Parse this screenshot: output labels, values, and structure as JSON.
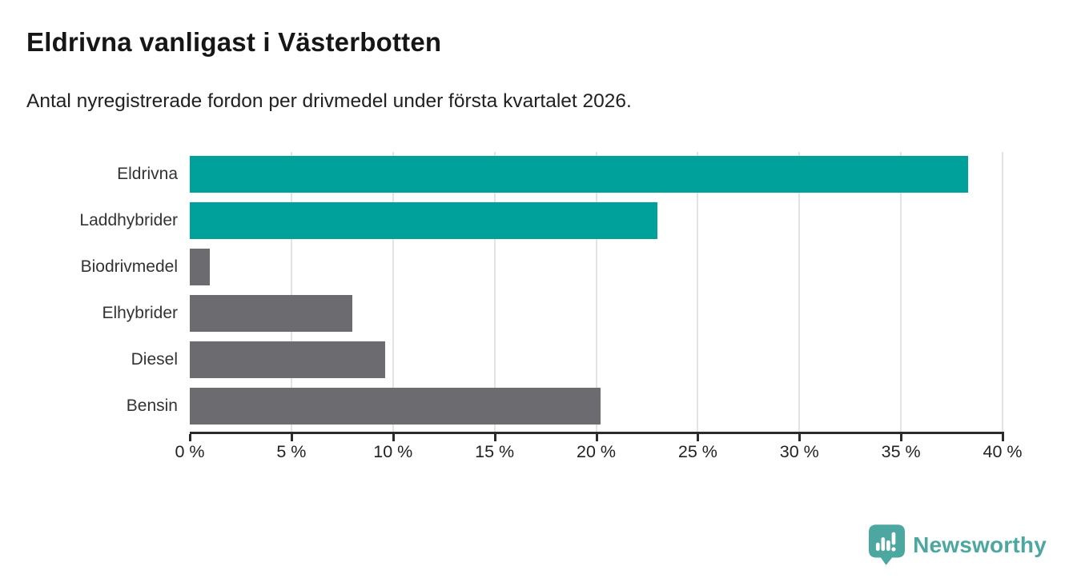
{
  "header": {
    "title": "Eldrivna vanligast i Västerbotten",
    "subtitle": "Antal nyregistrerade fordon per drivmedel under första kvartalet 2026."
  },
  "chart_data": {
    "type": "bar",
    "orientation": "horizontal",
    "title": "Eldrivna vanligast i Västerbotten",
    "subtitle": "Antal nyregistrerade fordon per drivmedel under första kvartalet 2026.",
    "categories": [
      "Eldrivna",
      "Laddhybrider",
      "Biodrivmedel",
      "Elhybrider",
      "Diesel",
      "Bensin"
    ],
    "values": [
      38.3,
      23.0,
      1.0,
      8.0,
      9.6,
      20.2
    ],
    "unit": "%",
    "xlim": [
      0,
      40
    ],
    "x_ticks": [
      0,
      5,
      10,
      15,
      20,
      25,
      30,
      35,
      40
    ],
    "x_tick_labels": [
      "0 %",
      "5 %",
      "10 %",
      "15 %",
      "20 %",
      "25 %",
      "30 %",
      "35 %",
      "40 %"
    ],
    "grid": true,
    "legend_position": "none",
    "bar_colors": [
      "#00a19a",
      "#00a19a",
      "#6b6b70",
      "#6b6b70",
      "#6b6b70",
      "#6b6b70"
    ],
    "palette": {
      "highlight": "#00a19a",
      "default": "#6b6b70",
      "gridline": "#e3e3e3",
      "axis": "#2b2b2b"
    }
  },
  "branding": {
    "logo_text": "Newsworthy",
    "logo_color": "#4ba7a0"
  }
}
